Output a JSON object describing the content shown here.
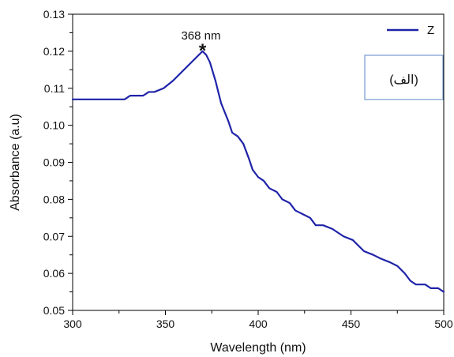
{
  "chart_data": {
    "type": "line",
    "title": "",
    "xlabel": "Wavelength (nm)",
    "ylabel": "Absorbance (a.u)",
    "xlim": [
      300,
      500
    ],
    "ylim": [
      0.05,
      0.13
    ],
    "x_ticks": [
      300,
      350,
      400,
      450,
      500
    ],
    "x_tick_labels": [
      "300",
      "350",
      "400",
      "450",
      "500"
    ],
    "y_ticks": [
      0.05,
      0.06,
      0.07,
      0.08,
      0.09,
      0.1,
      0.11,
      0.12,
      0.13
    ],
    "y_tick_labels": [
      "0.05",
      "0.06",
      "0.07",
      "0.08",
      "0.09",
      "0.10",
      "0.11",
      "0.12",
      "0.13"
    ],
    "grid": false,
    "legend": {
      "position": "top-right",
      "entries": [
        "Z"
      ]
    },
    "series": [
      {
        "name": "Z",
        "color": "#1f23a8",
        "points": [
          [
            300,
            0.107
          ],
          [
            315,
            0.107
          ],
          [
            328,
            0.107
          ],
          [
            331,
            0.108
          ],
          [
            338,
            0.108
          ],
          [
            341,
            0.109
          ],
          [
            344,
            0.109
          ],
          [
            349,
            0.11
          ],
          [
            354,
            0.112
          ],
          [
            358,
            0.114
          ],
          [
            362,
            0.116
          ],
          [
            366,
            0.118
          ],
          [
            370,
            0.12
          ],
          [
            372,
            0.119
          ],
          [
            374,
            0.117
          ],
          [
            377,
            0.112
          ],
          [
            380,
            0.106
          ],
          [
            384,
            0.101
          ],
          [
            386,
            0.098
          ],
          [
            389,
            0.097
          ],
          [
            392,
            0.095
          ],
          [
            395,
            0.091
          ],
          [
            397,
            0.088
          ],
          [
            400,
            0.086
          ],
          [
            403,
            0.085
          ],
          [
            406,
            0.083
          ],
          [
            410,
            0.082
          ],
          [
            413,
            0.08
          ],
          [
            417,
            0.079
          ],
          [
            420,
            0.077
          ],
          [
            424,
            0.076
          ],
          [
            428,
            0.075
          ],
          [
            431,
            0.073
          ],
          [
            435,
            0.073
          ],
          [
            440,
            0.072
          ],
          [
            446,
            0.07
          ],
          [
            451,
            0.069
          ],
          [
            457,
            0.066
          ],
          [
            462,
            0.065
          ],
          [
            466,
            0.064
          ],
          [
            471,
            0.063
          ],
          [
            475,
            0.062
          ],
          [
            479,
            0.06
          ],
          [
            482,
            0.058
          ],
          [
            485,
            0.057
          ],
          [
            490,
            0.057
          ],
          [
            493,
            0.056
          ],
          [
            497,
            0.056
          ],
          [
            500,
            0.055
          ]
        ]
      }
    ],
    "annotations": [
      {
        "text": "368 nm",
        "x": 370,
        "y": 0.12,
        "marker": "*"
      }
    ],
    "inset_label": "(الف)"
  }
}
